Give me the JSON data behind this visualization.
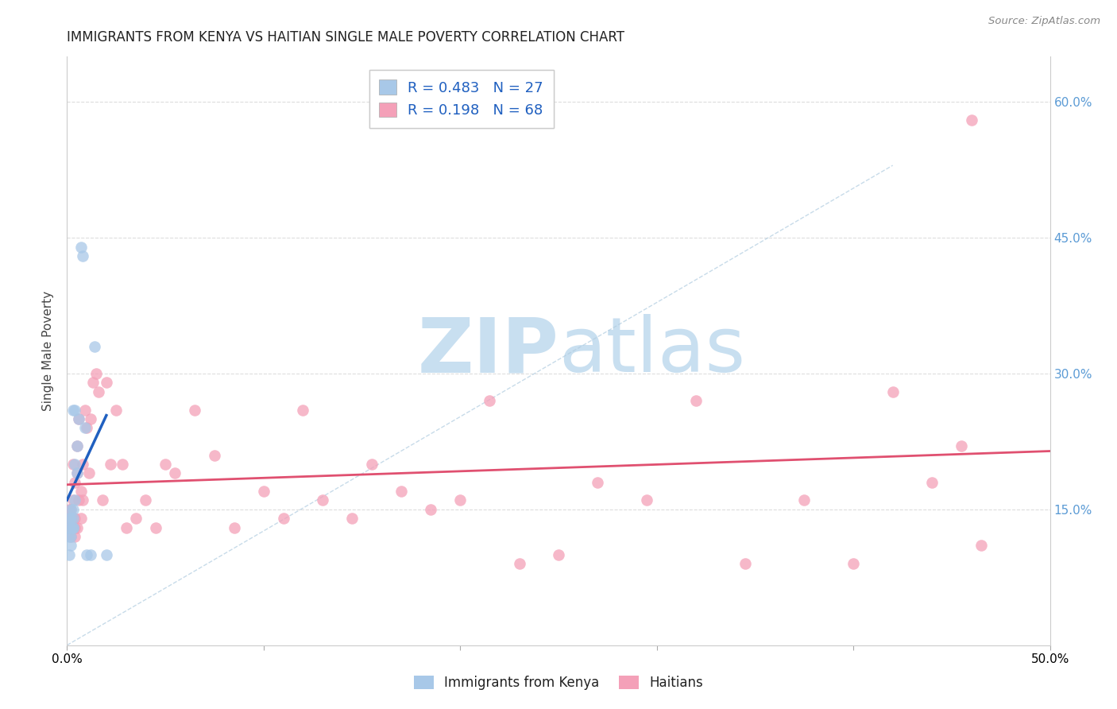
{
  "title": "IMMIGRANTS FROM KENYA VS HAITIAN SINGLE MALE POVERTY CORRELATION CHART",
  "source": "Source: ZipAtlas.com",
  "ylabel": "Single Male Poverty",
  "xlim": [
    0.0,
    0.5
  ],
  "ylim": [
    0.0,
    0.65
  ],
  "yticks": [
    0.0,
    0.15,
    0.3,
    0.45,
    0.6
  ],
  "xtick_positions": [
    0.0,
    0.1,
    0.2,
    0.3,
    0.4,
    0.5
  ],
  "xtick_labels": [
    "0.0%",
    "",
    "",
    "",
    "",
    "50.0%"
  ],
  "ytick_labels_right": [
    "",
    "15.0%",
    "30.0%",
    "45.0%",
    "60.0%"
  ],
  "legend_label1": "Immigrants from Kenya",
  "legend_label2": "Haitians",
  "R1": "0.483",
  "N1": "27",
  "R2": "0.198",
  "N2": "68",
  "color_kenya": "#a8c8e8",
  "color_haitian": "#f4a0b8",
  "color_kenya_line": "#2060c0",
  "color_haitian_line": "#e05070",
  "color_dashed": "#b0cce0",
  "watermark_zip_color": "#c8dff0",
  "watermark_atlas_color": "#c8dff0",
  "kenya_x": [
    0.001,
    0.001,
    0.001,
    0.001,
    0.002,
    0.002,
    0.002,
    0.002,
    0.002,
    0.003,
    0.003,
    0.003,
    0.003,
    0.003,
    0.004,
    0.004,
    0.004,
    0.005,
    0.005,
    0.006,
    0.007,
    0.008,
    0.009,
    0.01,
    0.012,
    0.014,
    0.02
  ],
  "kenya_y": [
    0.13,
    0.14,
    0.12,
    0.1,
    0.11,
    0.13,
    0.14,
    0.12,
    0.15,
    0.13,
    0.26,
    0.14,
    0.15,
    0.13,
    0.16,
    0.26,
    0.2,
    0.19,
    0.22,
    0.25,
    0.44,
    0.43,
    0.24,
    0.1,
    0.1,
    0.33,
    0.1
  ],
  "haitian_x": [
    0.001,
    0.001,
    0.001,
    0.002,
    0.002,
    0.002,
    0.002,
    0.003,
    0.003,
    0.003,
    0.003,
    0.004,
    0.004,
    0.004,
    0.004,
    0.005,
    0.005,
    0.005,
    0.006,
    0.006,
    0.007,
    0.007,
    0.008,
    0.008,
    0.009,
    0.01,
    0.011,
    0.012,
    0.013,
    0.015,
    0.016,
    0.018,
    0.02,
    0.022,
    0.025,
    0.028,
    0.03,
    0.035,
    0.04,
    0.045,
    0.05,
    0.055,
    0.065,
    0.075,
    0.085,
    0.1,
    0.11,
    0.12,
    0.13,
    0.145,
    0.155,
    0.17,
    0.185,
    0.2,
    0.215,
    0.23,
    0.25,
    0.27,
    0.295,
    0.32,
    0.345,
    0.375,
    0.4,
    0.42,
    0.44,
    0.455,
    0.46,
    0.465
  ],
  "haitian_y": [
    0.14,
    0.13,
    0.15,
    0.12,
    0.14,
    0.13,
    0.15,
    0.16,
    0.13,
    0.14,
    0.2,
    0.12,
    0.18,
    0.14,
    0.13,
    0.22,
    0.19,
    0.13,
    0.16,
    0.25,
    0.17,
    0.14,
    0.2,
    0.16,
    0.26,
    0.24,
    0.19,
    0.25,
    0.29,
    0.3,
    0.28,
    0.16,
    0.29,
    0.2,
    0.26,
    0.2,
    0.13,
    0.14,
    0.16,
    0.13,
    0.2,
    0.19,
    0.26,
    0.21,
    0.13,
    0.17,
    0.14,
    0.26,
    0.16,
    0.14,
    0.2,
    0.17,
    0.15,
    0.16,
    0.27,
    0.09,
    0.1,
    0.18,
    0.16,
    0.27,
    0.09,
    0.16,
    0.09,
    0.28,
    0.18,
    0.22,
    0.58,
    0.11
  ]
}
